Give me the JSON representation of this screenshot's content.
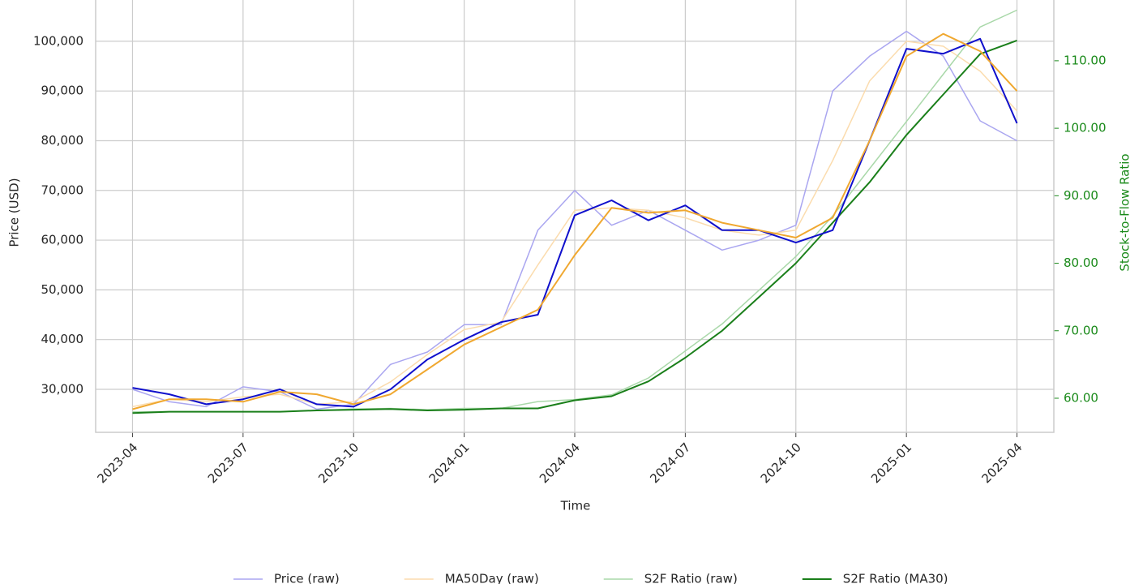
{
  "chart_data": {
    "type": "line",
    "x_label": "Time",
    "y_label": "Price (USD)",
    "y2_label": "Stock-to-Flow Ratio",
    "x": [
      "2023-04",
      "2023-05",
      "2023-06",
      "2023-07",
      "2023-08",
      "2023-09",
      "2023-10",
      "2023-11",
      "2023-12",
      "2024-01",
      "2024-02",
      "2024-03",
      "2024-04",
      "2024-05",
      "2024-06",
      "2024-07",
      "2024-08",
      "2024-09",
      "2024-10",
      "2024-11",
      "2024-12",
      "2025-01",
      "2025-02",
      "2025-03",
      "2025-04"
    ],
    "xlim": [
      "2023-03",
      "2025-05"
    ],
    "xticks": [
      "2023-04",
      "2023-07",
      "2023-10",
      "2024-01",
      "2024-04",
      "2024-07",
      "2024-10",
      "2025-01",
      "2025-04"
    ],
    "ylim": [
      21350,
      108300
    ],
    "yticks": [
      {
        "value": 30000,
        "label": "30,000"
      },
      {
        "value": 40000,
        "label": "40,000"
      },
      {
        "value": 50000,
        "label": "50,000"
      },
      {
        "value": 60000,
        "label": "60,000"
      },
      {
        "value": 70000,
        "label": "70,000"
      },
      {
        "value": 80000,
        "label": "80,000"
      },
      {
        "value": 90000,
        "label": "90,000"
      },
      {
        "value": 100000,
        "label": "100,000"
      }
    ],
    "y2lim": [
      54.95,
      119.0
    ],
    "y2ticks": [
      {
        "value": 60,
        "label": "60.00"
      },
      {
        "value": 70,
        "label": "70.00"
      },
      {
        "value": 80,
        "label": "80.00"
      },
      {
        "value": 90,
        "label": "90.00"
      },
      {
        "value": 100,
        "label": "100.00"
      },
      {
        "value": 110,
        "label": "110.00"
      }
    ],
    "grid": true,
    "legend": "bottom",
    "y2_color": "#1a8a1a",
    "series": [
      {
        "name": "Price (raw)",
        "color": "#aaa6f0",
        "width": 1.5,
        "values": [
          30000,
          27500,
          26500,
          30500,
          29500,
          26000,
          27000,
          35000,
          37500,
          43000,
          43000,
          62000,
          70000,
          63000,
          66000,
          62000,
          58000,
          60000,
          63000,
          90000,
          97000,
          102000,
          97000,
          84000,
          80000
        ]
      },
      {
        "name": "MA50Day (raw)",
        "color": "#fbdcae",
        "width": 1.5,
        "values": [
          26500,
          28000,
          27500,
          28500,
          29000,
          27000,
          27500,
          31500,
          37000,
          42000,
          43500,
          55000,
          66000,
          66500,
          66000,
          64500,
          62000,
          61000,
          62000,
          76000,
          92000,
          100000,
          99000,
          94000,
          86000
        ]
      },
      {
        "name": "S2F Ratio (raw)",
        "color": "#a9d8a9",
        "width": 1.5,
        "axis": "y2",
        "values": [
          58,
          58,
          58,
          58,
          58,
          58.2,
          58.4,
          58.5,
          58.3,
          58.5,
          58.5,
          59.5,
          59.8,
          60.5,
          63,
          67,
          71,
          76,
          81,
          87,
          94,
          101,
          108,
          115,
          117.5
        ]
      },
      {
        "name": "S2F Ratio (MA30)",
        "color": "#1a7f1a",
        "width": 2,
        "axis": "y2",
        "values": [
          57.8,
          58,
          58,
          58,
          58,
          58.2,
          58.3,
          58.4,
          58.2,
          58.3,
          58.5,
          58.5,
          59.7,
          60.3,
          62.5,
          66,
          70,
          75,
          80,
          86,
          92,
          99,
          105,
          111,
          113
        ]
      },
      {
        "color": "#1010cc",
        "width": 2,
        "values": [
          30300,
          29000,
          27000,
          28000,
          30000,
          27000,
          26500,
          30000,
          36000,
          40000,
          43500,
          45000,
          65000,
          68000,
          64000,
          67000,
          62000,
          62000,
          59500,
          62000,
          80000,
          98500,
          97500,
          100500,
          83500
        ]
      },
      {
        "color": "#f0a830",
        "width": 2,
        "values": [
          26000,
          28000,
          28000,
          27500,
          29500,
          29000,
          27000,
          29000,
          34000,
          39000,
          42500,
          46000,
          57000,
          66500,
          65500,
          66000,
          63500,
          62000,
          60500,
          64500,
          80000,
          97000,
          101500,
          98000,
          90000
        ]
      }
    ]
  }
}
